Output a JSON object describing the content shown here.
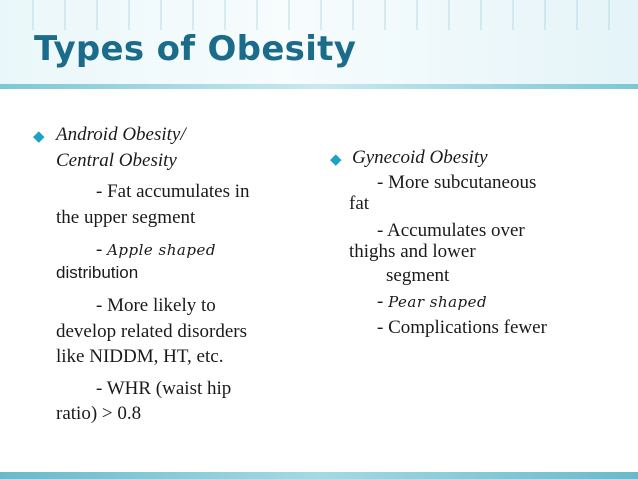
{
  "title": "Types of Obesity",
  "left": {
    "heading_line1": "Android Obesity/",
    "heading_line2": "Central Obesity",
    "p1_line1": "- Fat accumulates in",
    "p1_line2": "the upper segment",
    "p2_prefix": "- ",
    "p2_script": "Apple shaped",
    "p2_line2": "distribution",
    "p3_line1": "- More likely to",
    "p3_line2": "develop related disorders",
    "p3_line3": "like NIDDM, HT, etc.",
    "p4_line1": "- WHR (waist hip",
    "p4_line2": "ratio) > 0.8"
  },
  "right": {
    "heading": "Gynecoid Obesity",
    "p1_line1": "- More subcutaneous",
    "p1_line2": "fat",
    "p2_line1": "- Accumulates over",
    "p2_line2": "thighs and lower",
    "p2_line3": "segment",
    "p3_prefix": "- ",
    "p3_script": "Pear shaped",
    "p4": "- Complications fewer"
  },
  "colors": {
    "title": "#1b6b8a",
    "bullet": "#1aa3c4",
    "band": "#7cc7d6"
  },
  "icons": {
    "bullet": "diamond-bullet-icon"
  }
}
